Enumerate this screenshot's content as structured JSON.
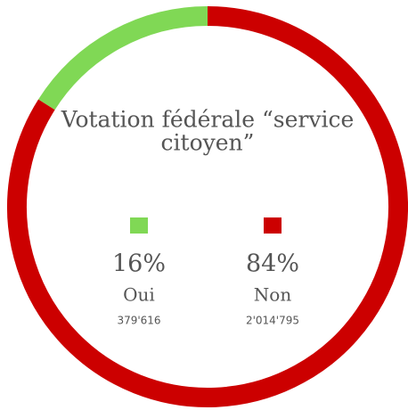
{
  "chart_data": {
    "type": "donut",
    "title": "Votation fédérale “service citoyen”",
    "categories": [
      "Oui",
      "Non"
    ],
    "values": [
      16,
      84
    ],
    "value_labels": [
      "16%",
      "84%"
    ],
    "counts": [
      379616,
      2014795
    ],
    "count_labels": [
      "379'616",
      "2'014'795"
    ],
    "colors": [
      "#80d855",
      "#cc0000"
    ]
  }
}
